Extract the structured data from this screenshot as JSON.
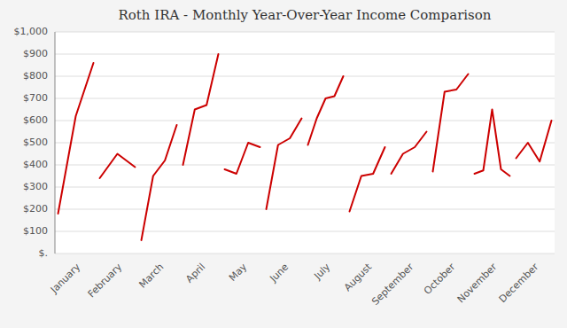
{
  "chart_data": {
    "type": "line",
    "title": "Roth IRA - Monthly Year-Over-Year Income Comparison",
    "categories": [
      "January",
      "February",
      "March",
      "April",
      "May",
      "June",
      "July",
      "August",
      "September",
      "October",
      "November",
      "December"
    ],
    "values": [
      [
        180,
        620,
        860
      ],
      [
        340,
        450,
        390
      ],
      [
        60,
        350,
        420,
        580
      ],
      [
        400,
        650,
        670,
        900
      ],
      [
        380,
        360,
        500,
        480
      ],
      [
        200,
        490,
        520,
        610
      ],
      [
        490,
        610,
        700,
        710,
        800
      ],
      [
        190,
        350,
        360,
        480
      ],
      [
        360,
        450,
        480,
        550
      ],
      [
        370,
        730,
        740,
        810
      ],
      [
        360,
        375,
        650,
        380,
        350
      ],
      [
        430,
        500,
        415,
        600
      ]
    ],
    "color": "#cc0000",
    "ylim": [
      0,
      1000
    ],
    "yticks": [
      {
        "value": 0,
        "label": "$."
      },
      {
        "value": 100,
        "label": "$100"
      },
      {
        "value": 200,
        "label": "$200"
      },
      {
        "value": 300,
        "label": "$300"
      },
      {
        "value": 400,
        "label": "$400"
      },
      {
        "value": 500,
        "label": "$500"
      },
      {
        "value": 600,
        "label": "$600"
      },
      {
        "value": 700,
        "label": "$700"
      },
      {
        "value": 800,
        "label": "$800"
      },
      {
        "value": 900,
        "label": "$900"
      },
      {
        "value": 1000,
        "label": "$1,000"
      }
    ],
    "grid": true
  }
}
